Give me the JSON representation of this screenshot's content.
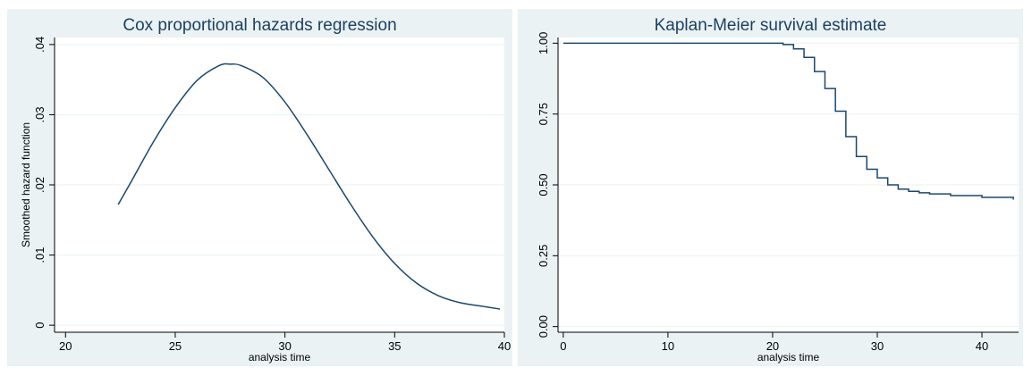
{
  "colors": {
    "background": "#eaf2f3",
    "plot_area": "#ffffff",
    "line": "#1a476f",
    "title": "#1c3f5e",
    "grid": "#eaf2f3"
  },
  "chart_data": [
    {
      "type": "line",
      "title": "Cox proportional hazards regression",
      "xlabel": "analysis time",
      "ylabel": "Smoothed hazard function",
      "xlim": [
        19.5,
        40
      ],
      "ylim": [
        -0.001,
        0.041
      ],
      "xticks": [
        20,
        25,
        30,
        35,
        40
      ],
      "xtick_labels": [
        "20",
        "25",
        "30",
        "35",
        "40"
      ],
      "yticks": [
        0,
        0.01,
        0.02,
        0.03,
        0.04
      ],
      "ytick_labels": [
        "0",
        ".01",
        ".02",
        ".03",
        ".04"
      ],
      "grid": true,
      "series": [
        {
          "x": [
            22.4,
            23,
            24,
            25,
            26,
            27,
            27.5,
            28,
            29,
            30,
            31,
            32,
            33,
            34,
            35,
            36,
            37,
            38,
            39,
            39.8
          ],
          "y": [
            0.0172,
            0.0205,
            0.0261,
            0.031,
            0.0349,
            0.037,
            0.0372,
            0.037,
            0.0353,
            0.0318,
            0.0272,
            0.0222,
            0.0172,
            0.0126,
            0.0088,
            0.006,
            0.0042,
            0.0032,
            0.0027,
            0.0023
          ]
        }
      ]
    },
    {
      "type": "line",
      "title": "Kaplan-Meier survival estimate",
      "xlabel": "analysis time",
      "ylabel": "",
      "xlim": [
        -0.5,
        43.5
      ],
      "ylim": [
        -0.02,
        1.02
      ],
      "xticks": [
        0,
        10,
        20,
        30,
        40
      ],
      "xtick_labels": [
        "0",
        "10",
        "20",
        "30",
        "40"
      ],
      "yticks": [
        0,
        0.25,
        0.5,
        0.75,
        1
      ],
      "ytick_labels": [
        "0.00",
        "0.25",
        "0.50",
        "0.75",
        "1.00"
      ],
      "grid": true,
      "step": true,
      "series": [
        {
          "x": [
            0,
            20,
            21,
            22,
            23,
            24,
            25,
            26,
            27,
            28,
            29,
            30,
            31,
            32,
            33,
            34,
            35,
            37,
            40,
            43
          ],
          "y": [
            1.0,
            1.0,
            0.995,
            0.98,
            0.95,
            0.9,
            0.84,
            0.76,
            0.67,
            0.6,
            0.555,
            0.525,
            0.5,
            0.485,
            0.477,
            0.472,
            0.468,
            0.462,
            0.456,
            0.448
          ]
        }
      ]
    }
  ]
}
